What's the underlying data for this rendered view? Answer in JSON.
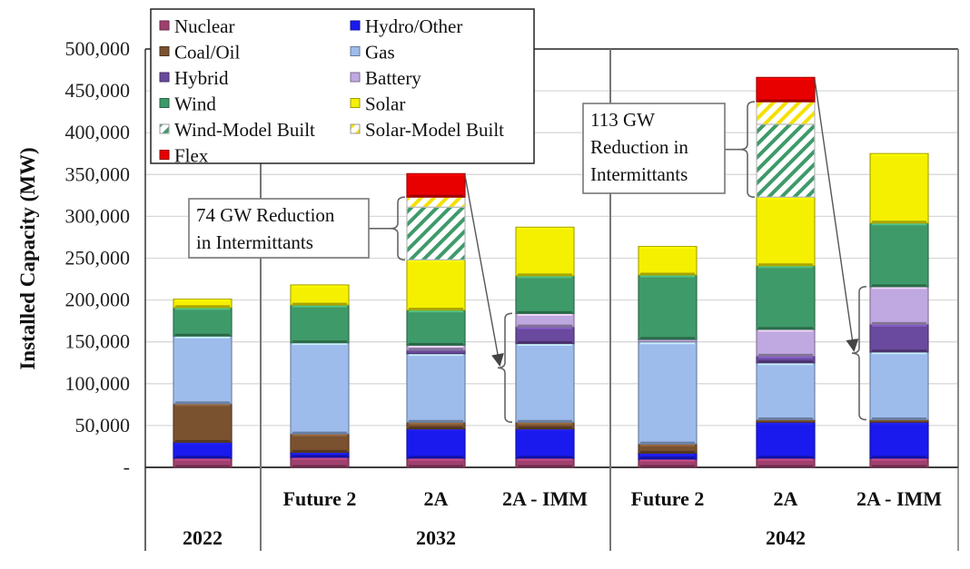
{
  "chart_data": {
    "type": "bar",
    "stacked": true,
    "title": "",
    "ylabel": "Installed Capacity (MW)",
    "xlabel": "",
    "ylim": [
      0,
      500000
    ],
    "yticks": [
      0,
      50000,
      100000,
      150000,
      200000,
      250000,
      300000,
      350000,
      400000,
      450000,
      500000
    ],
    "ytick_labels": [
      "-",
      "50,000",
      "100,000",
      "150,000",
      "200,000",
      "250,000",
      "300,000",
      "350,000",
      "400,000",
      "450,000",
      "500,000"
    ],
    "grid": true,
    "legend_position": "top-left",
    "groups": [
      {
        "label": "2022",
        "categories": [
          ""
        ]
      },
      {
        "label": "2032",
        "categories": [
          "Future 2",
          "2A",
          "2A - IMM"
        ]
      },
      {
        "label": "2042",
        "categories": [
          "Future 2",
          "2A",
          "2A - IMM"
        ]
      }
    ],
    "categories": [
      "2022",
      "2032 Future 2",
      "2032 2A",
      "2032 2A - IMM",
      "2042 Future 2",
      "2042 2A",
      "2042 2A - IMM"
    ],
    "series": [
      {
        "name": "Nuclear",
        "color": "#a0406e",
        "pattern": "solid",
        "values": [
          11000,
          12000,
          11000,
          11000,
          10000,
          11000,
          11000
        ]
      },
      {
        "name": "Hydro/Other",
        "color": "#1a1aee",
        "pattern": "solid",
        "values": [
          19000,
          6000,
          35000,
          35000,
          7000,
          43000,
          43000
        ]
      },
      {
        "name": "Coal/Oil",
        "color": "#7a5230",
        "pattern": "solid",
        "values": [
          46000,
          22000,
          8000,
          8000,
          11000,
          3000,
          3000
        ]
      },
      {
        "name": "Gas",
        "color": "#9dbcec",
        "pattern": "solid",
        "values": [
          81000,
          109000,
          82000,
          94000,
          122000,
          68000,
          81000
        ]
      },
      {
        "name": "Hybrid",
        "color": "#6a4a9e",
        "pattern": "solid",
        "values": [
          0,
          0,
          4000,
          20000,
          0,
          8000,
          33000
        ]
      },
      {
        "name": "Battery",
        "color": "#c0a8e0",
        "pattern": "solid",
        "values": [
          0,
          0,
          6000,
          16000,
          3000,
          32000,
          45000
        ]
      },
      {
        "name": "Wind",
        "color": "#3f9a6a",
        "pattern": "solid",
        "values": [
          34000,
          45000,
          42000,
          45000,
          77000,
          76000,
          76000
        ]
      },
      {
        "name": "Solar",
        "color": "#f5f000",
        "pattern": "solid",
        "values": [
          10000,
          24000,
          60000,
          58000,
          34000,
          82000,
          83000
        ]
      },
      {
        "name": "Wind-Model Built",
        "color": "#3f9a6a",
        "pattern": "hatch",
        "values": [
          0,
          0,
          63000,
          0,
          0,
          87000,
          0
        ]
      },
      {
        "name": "Solar-Model Built",
        "color": "#f5e000",
        "pattern": "hatch",
        "values": [
          0,
          0,
          12000,
          0,
          0,
          27000,
          0
        ]
      },
      {
        "name": "Flex",
        "color": "#e80000",
        "pattern": "solid",
        "values": [
          0,
          0,
          28000,
          0,
          0,
          29000,
          0
        ]
      }
    ],
    "annotations": [
      {
        "text_lines": [
          "74 GW Reduction",
          "in Intermittants"
        ],
        "from_category": "2032 2A",
        "to_category": "2032 2A - IMM"
      },
      {
        "text_lines": [
          "113 GW",
          "Reduction in",
          "Intermittants"
        ],
        "from_category": "2042 2A",
        "to_category": "2042 2A - IMM"
      }
    ]
  }
}
